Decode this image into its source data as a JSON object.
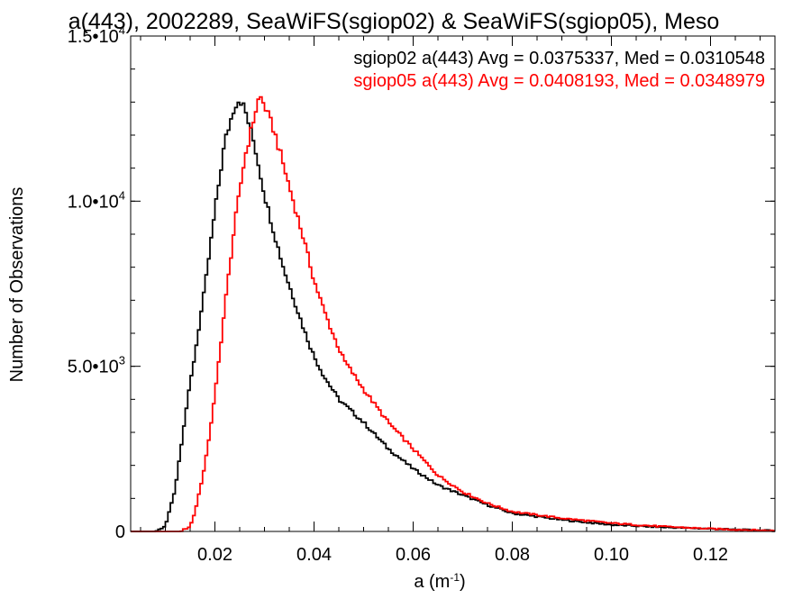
{
  "chart_data": {
    "type": "line",
    "title": "a(443), 2002289, SeaWiFS(sgiop02) & SeaWiFS(sgiop05), Meso",
    "xlabel_main": "a (m",
    "xlabel_sup": "-1",
    "xlabel_end": ")",
    "ylabel": "Number of Observations",
    "xlim": [
      0.003,
      0.133
    ],
    "ylim": [
      0,
      15000
    ],
    "x_ticks": [
      {
        "value": 0.02,
        "label": "0.02"
      },
      {
        "value": 0.04,
        "label": "0.04"
      },
      {
        "value": 0.06,
        "label": "0.06"
      },
      {
        "value": 0.08,
        "label": "0.08"
      },
      {
        "value": 0.1,
        "label": "0.10"
      },
      {
        "value": 0.12,
        "label": "0.12"
      }
    ],
    "y_ticks": [
      {
        "value": 0,
        "mantissa": "0",
        "exp": ""
      },
      {
        "value": 5000,
        "mantissa": "5.0•10",
        "exp": "3"
      },
      {
        "value": 10000,
        "mantissa": "1.0•10",
        "exp": "4"
      },
      {
        "value": 15000,
        "mantissa": "1.5•10",
        "exp": "4"
      }
    ],
    "x_minor_step": 0.005,
    "y_minor_step": 1000,
    "series": [
      {
        "name": "sgiop02",
        "legend": "sgiop02 a(443) Avg = 0.0375337, Med = 0.0310548",
        "color": "#000000",
        "x": [
          0.003,
          0.008,
          0.01,
          0.012,
          0.014,
          0.016,
          0.018,
          0.02,
          0.022,
          0.024,
          0.025,
          0.026,
          0.028,
          0.03,
          0.032,
          0.034,
          0.036,
          0.038,
          0.04,
          0.042,
          0.045,
          0.05,
          0.055,
          0.06,
          0.065,
          0.07,
          0.075,
          0.08,
          0.09,
          0.1,
          0.11,
          0.12,
          0.133
        ],
        "y": [
          0,
          0,
          150,
          1300,
          3500,
          5400,
          7400,
          9700,
          11800,
          12900,
          13100,
          12800,
          11700,
          10200,
          9000,
          7900,
          7000,
          6100,
          5300,
          4700,
          4000,
          3300,
          2500,
          1900,
          1400,
          1100,
          800,
          550,
          350,
          200,
          130,
          80,
          20
        ]
      },
      {
        "name": "sgiop05",
        "legend": "sgiop05 a(443) Avg = 0.0408193, Med = 0.0348979",
        "color": "#ff0000",
        "x": [
          0.003,
          0.013,
          0.015,
          0.016,
          0.018,
          0.02,
          0.022,
          0.024,
          0.026,
          0.028,
          0.029,
          0.03,
          0.032,
          0.034,
          0.036,
          0.038,
          0.04,
          0.042,
          0.044,
          0.046,
          0.05,
          0.055,
          0.06,
          0.065,
          0.07,
          0.075,
          0.08,
          0.09,
          0.1,
          0.11,
          0.12,
          0.133
        ],
        "y": [
          0,
          0,
          150,
          600,
          2000,
          4100,
          6800,
          9300,
          11300,
          12600,
          13200,
          12900,
          12100,
          11000,
          9900,
          8800,
          7600,
          6700,
          5900,
          5200,
          4300,
          3300,
          2500,
          1700,
          1200,
          850,
          600,
          400,
          250,
          150,
          80,
          20
        ]
      }
    ]
  }
}
